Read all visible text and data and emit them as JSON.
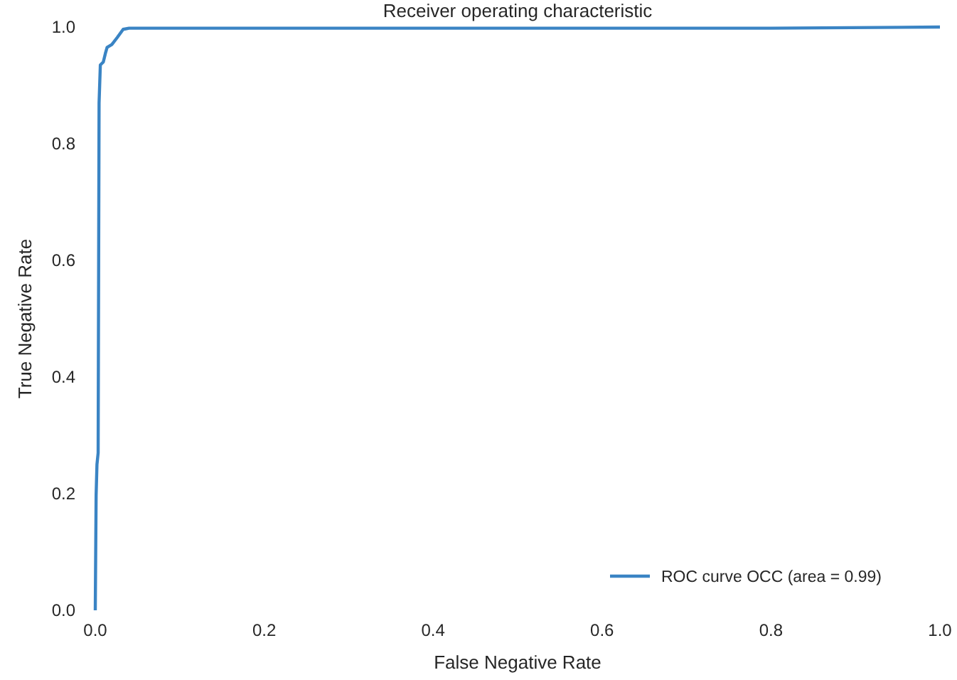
{
  "chart_data": {
    "type": "line",
    "title": "Receiver operating characteristic",
    "xlabel": "False Negative Rate",
    "ylabel": "True Negative Rate",
    "xlim": [
      0,
      1
    ],
    "ylim": [
      0,
      1
    ],
    "xticks": [
      {
        "value": 0,
        "label": "0.0"
      },
      0.2,
      0.4,
      0.6,
      0.8,
      {
        "value": 1,
        "label": "1.0"
      }
    ],
    "yticks": [
      {
        "value": 0,
        "label": "0.0"
      },
      0.2,
      0.4,
      0.6,
      0.8,
      {
        "value": 1,
        "label": "1.0"
      }
    ],
    "grid": false,
    "legend": "bottom right",
    "line_style": "solid",
    "marker": "none",
    "series": [
      {
        "name": "ROC curve OCC (area = 0.99)",
        "color": "#3a84c4",
        "x": [
          0,
          0.001,
          0.002,
          0.0034,
          0.004,
          0.0045,
          0.006,
          0.0095,
          0.012,
          0.014,
          0.0196,
          0.026,
          0.033,
          0.04,
          0.8,
          1
        ],
        "values": [
          0,
          0.197,
          0.25,
          0.27,
          0.6,
          0.87,
          0.935,
          0.94,
          0.955,
          0.965,
          0.97,
          0.982,
          0.996,
          0.998,
          0.998,
          1
        ]
      }
    ]
  }
}
